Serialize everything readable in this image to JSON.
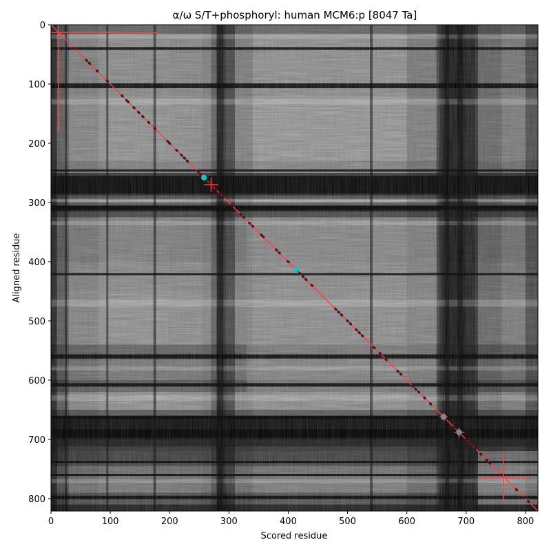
{
  "chart_data": {
    "type": "heatmap",
    "title": "α/ω S/T+phosphoryl: human MCM6:p [8047 Ta]",
    "xlabel": "Scored residue",
    "ylabel": "Aligned residue",
    "xlim": [
      0,
      821
    ],
    "ylim": [
      821,
      0
    ],
    "x_ticks": [
      0,
      100,
      200,
      300,
      400,
      500,
      600,
      700,
      800
    ],
    "y_ticks": [
      0,
      100,
      200,
      300,
      400,
      500,
      600,
      700,
      800
    ],
    "colormap": "grayscale",
    "diagonal_color": "#ff4040",
    "marker_color_dark": "#5a1010",
    "marker_color_cyan": "#20c0c0",
    "column_profile": [
      [
        0,
        0.08
      ],
      [
        10,
        0.3
      ],
      [
        30,
        0.5
      ],
      [
        80,
        0.62
      ],
      [
        150,
        0.6
      ],
      [
        200,
        0.62
      ],
      [
        255,
        0.58
      ],
      [
        270,
        0.55
      ],
      [
        280,
        0.3
      ],
      [
        295,
        0.2
      ],
      [
        310,
        0.45
      ],
      [
        340,
        0.65
      ],
      [
        420,
        0.62
      ],
      [
        500,
        0.64
      ],
      [
        600,
        0.62
      ],
      [
        650,
        0.45
      ],
      [
        660,
        0.2
      ],
      [
        700,
        0.15
      ],
      [
        720,
        0.35
      ],
      [
        760,
        0.55
      ],
      [
        800,
        0.5
      ],
      [
        821,
        0.2
      ]
    ],
    "row_profile": [
      [
        0,
        0.35
      ],
      [
        15,
        0.6
      ],
      [
        60,
        0.72
      ],
      [
        100,
        0.6
      ],
      [
        120,
        0.7
      ],
      [
        230,
        0.72
      ],
      [
        250,
        0.5
      ],
      [
        255,
        0.08
      ],
      [
        285,
        0.08
      ],
      [
        295,
        0.7
      ],
      [
        300,
        0.75
      ],
      [
        305,
        0.12
      ],
      [
        315,
        0.12
      ],
      [
        325,
        0.6
      ],
      [
        400,
        0.62
      ],
      [
        450,
        0.7
      ],
      [
        540,
        0.68
      ],
      [
        555,
        0.3
      ],
      [
        565,
        0.6
      ],
      [
        600,
        0.55
      ],
      [
        605,
        0.3
      ],
      [
        620,
        0.68
      ],
      [
        650,
        0.72
      ],
      [
        660,
        0.15
      ],
      [
        700,
        0.1
      ],
      [
        720,
        0.45
      ],
      [
        735,
        0.2
      ],
      [
        745,
        0.5
      ],
      [
        770,
        0.55
      ],
      [
        790,
        0.6
      ],
      [
        810,
        0.2
      ],
      [
        821,
        0.15
      ]
    ],
    "dark_rows": [
      {
        "y": 40,
        "w": 4
      },
      {
        "y": 103,
        "w": 7
      },
      {
        "y": 246,
        "w": 3
      },
      {
        "y": 309,
        "w": 5
      },
      {
        "y": 421,
        "w": 3
      },
      {
        "y": 560,
        "w": 6
      },
      {
        "y": 608,
        "w": 5
      },
      {
        "y": 663,
        "w": 4
      },
      {
        "y": 690,
        "w": 12
      },
      {
        "y": 738,
        "w": 3
      },
      {
        "y": 760,
        "w": 3
      },
      {
        "y": 798,
        "w": 5
      }
    ],
    "bright_rows": [
      {
        "y": 20,
        "w": 6
      },
      {
        "y": 130,
        "w": 8
      },
      {
        "y": 296,
        "w": 4
      },
      {
        "y": 335,
        "w": 6
      },
      {
        "y": 470,
        "w": 10
      },
      {
        "y": 580,
        "w": 6
      },
      {
        "y": 630,
        "w": 8
      },
      {
        "y": 770,
        "w": 6
      }
    ],
    "dark_cols": [
      {
        "x": 25,
        "w": 3
      },
      {
        "x": 95,
        "w": 3
      },
      {
        "x": 175,
        "w": 4
      },
      {
        "x": 285,
        "w": 10
      },
      {
        "x": 540,
        "w": 4
      },
      {
        "x": 668,
        "w": 6
      },
      {
        "x": 690,
        "w": 8
      }
    ],
    "blocks": [
      {
        "x0": 655,
        "x1": 715,
        "y0": 0,
        "y1": 821,
        "level": 0.12
      },
      {
        "x0": 0,
        "x1": 821,
        "y0": 660,
        "y1": 712,
        "level": 0.08
      },
      {
        "x0": 0,
        "x1": 821,
        "y0": 255,
        "y1": 288,
        "level": 0.06
      },
      {
        "x0": 720,
        "x1": 821,
        "y0": 720,
        "y1": 810,
        "level": 0.62
      },
      {
        "x0": 330,
        "x1": 650,
        "y0": 330,
        "y1": 650,
        "level": 0.58
      }
    ],
    "diagonal": {
      "x": [
        0,
        821
      ],
      "y": [
        0,
        821
      ]
    },
    "dark_markers": [
      40,
      60,
      65,
      78,
      95,
      120,
      128,
      130,
      140,
      148,
      155,
      165,
      175,
      197,
      200,
      212,
      220,
      225,
      230,
      248,
      252,
      262,
      268,
      272,
      278,
      285,
      290,
      305,
      320,
      325,
      335,
      340,
      355,
      358,
      380,
      385,
      400,
      415,
      420,
      425,
      430,
      440,
      480,
      485,
      490,
      500,
      505,
      515,
      520,
      525,
      545,
      555,
      565,
      585,
      590,
      610,
      615,
      620,
      630,
      640,
      665,
      680,
      690,
      700,
      705,
      710,
      715,
      725,
      735,
      740,
      760,
      785,
      798,
      805
    ],
    "cyan_markers": [
      258,
      413,
      662,
      688
    ],
    "crosshairs": [
      {
        "x": 13,
        "y": 13,
        "h": [
          0,
          178
        ],
        "v": [
          0,
          178
        ]
      },
      {
        "x": 270,
        "y": 270,
        "h": [
          258,
          282
        ],
        "v": [
          258,
          282
        ]
      },
      {
        "x": 763,
        "y": 763,
        "h": [
          722,
          805
        ],
        "v": [
          722,
          805
        ]
      },
      {
        "x": 662,
        "y": 662,
        "h": [
          655,
          669
        ],
        "v": [
          655,
          669
        ]
      },
      {
        "x": 688,
        "y": 688,
        "h": [
          680,
          697
        ],
        "v": [
          680,
          697
        ]
      }
    ]
  }
}
